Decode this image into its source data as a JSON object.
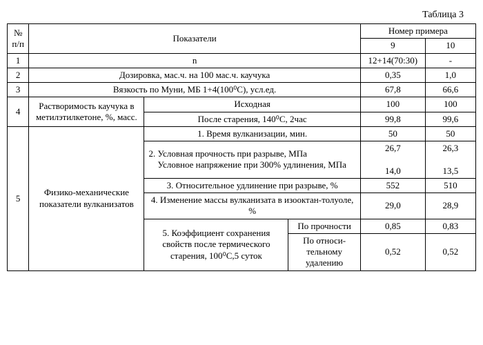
{
  "caption": "Таблица 3",
  "header": {
    "num": "№ п/п",
    "indicators": "Показатели",
    "example_number": "Номер примера",
    "col9": "9",
    "col10": "10"
  },
  "rows": {
    "r1": {
      "n": "1",
      "label": "n",
      "v9": "12+14(70:30)",
      "v10": "-"
    },
    "r2": {
      "n": "2",
      "label": "Дозировка, мас.ч. на 100 мас.ч. каучука",
      "v9": "0,35",
      "v10": "1,0"
    },
    "r3": {
      "n": "3",
      "label": "Вязкость по Муни, МБ 1+4(100⁰С), усл.ед.",
      "v9": "67,8",
      "v10": "66,6"
    },
    "r4": {
      "n": "4",
      "group": "Растворимость каучука в метилэтилкетоне, %, масс.",
      "a": {
        "label": "Исходная",
        "v9": "100",
        "v10": "100"
      },
      "b": {
        "label": "После старения, 140⁰С, 2час",
        "v9": "99,8",
        "v10": "99,6"
      }
    },
    "r5": {
      "n": "5",
      "group": "Физико-механические показатели вулканизатов",
      "a": {
        "label": "1. Время вулканизации, мин.",
        "v9": "50",
        "v10": "50"
      },
      "b": {
        "label": "2. Условная прочность при разрыве, МПа\n    Условное напряжение при 300% удлинения, МПа",
        "v9a": "26,7",
        "v10a": "26,3",
        "v9b": "14,0",
        "v10b": "13,5"
      },
      "c": {
        "label": "3. Относительное удлинение при разрыве, %",
        "v9": "552",
        "v10": "510"
      },
      "d": {
        "label": "4. Изменение массы вулканизата в изооктан-толуоле, %",
        "v9": "29,0",
        "v10": "28,9"
      },
      "e": {
        "label": "5. Коэффициент сохранения свойств после термического старения, 100⁰С,5 суток",
        "sub1": {
          "label": "По прочности",
          "v9": "0,85",
          "v10": "0,83"
        },
        "sub2": {
          "label": "По относи­тельному удалению",
          "v9": "0,52",
          "v10": "0,52"
        }
      }
    }
  }
}
